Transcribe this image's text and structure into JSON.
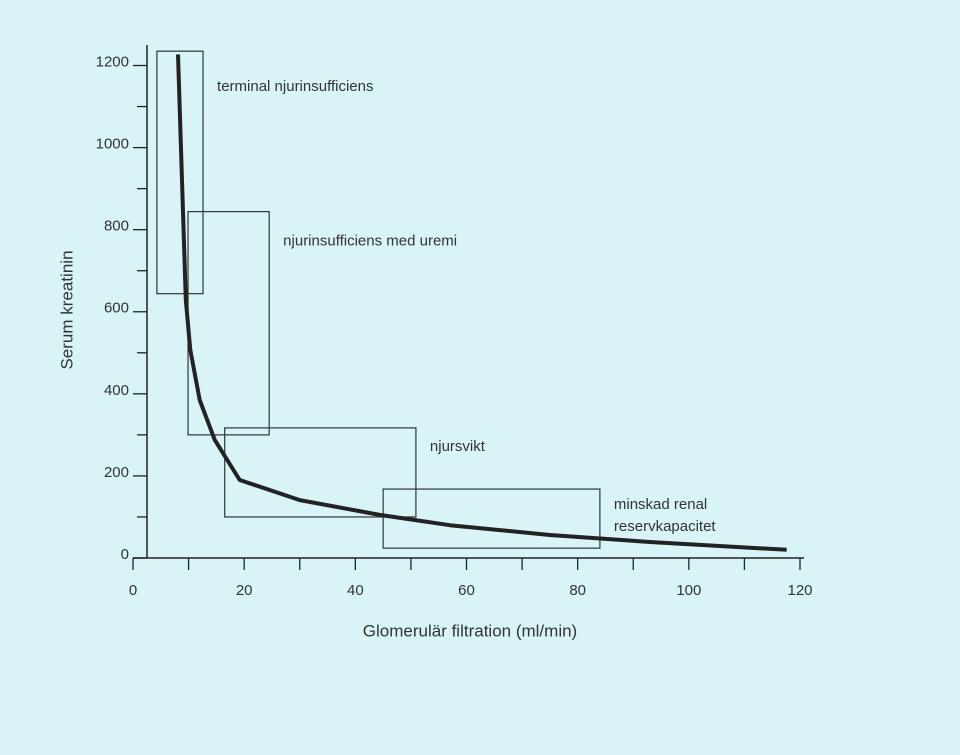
{
  "chart_data": {
    "type": "line",
    "x_label": "Glomerulär filtration (ml/min)",
    "y_label": "Serum kreatinin",
    "xlim": [
      0,
      120
    ],
    "ylim": [
      0,
      1250
    ],
    "xticks": [
      0,
      20,
      40,
      60,
      80,
      100,
      120
    ],
    "xminorticks": [
      10,
      30,
      50,
      70,
      90,
      110
    ],
    "yticks": [
      0,
      200,
      400,
      600,
      800,
      1000,
      1200
    ],
    "yminorticks": [
      100,
      300,
      500,
      700,
      900,
      1100
    ],
    "series": [
      {
        "color": "#222222",
        "x": [
          8.1,
          9.5,
          10.3,
          12,
          14.7,
          19.2,
          30,
          44.4,
          57,
          75,
          93,
          117.6
        ],
        "values": [
          1227,
          629,
          507,
          385,
          288,
          190,
          141,
          105,
          80,
          56,
          39,
          20
        ]
      }
    ],
    "regions": [
      {
        "label": [
          "terminal njurinsufficiens"
        ],
        "x": [
          4.3,
          12.6
        ],
        "y": [
          644,
          1235
        ]
      },
      {
        "label": [
          "njurinsufficiens med uremi"
        ],
        "x": [
          9.9,
          24.5
        ],
        "y": [
          300,
          844
        ]
      },
      {
        "label": [
          "njursvikt"
        ],
        "x": [
          16.5,
          50.9
        ],
        "y": [
          100,
          317
        ]
      },
      {
        "label": [
          "minskad renal",
          "reservkapacitet"
        ],
        "x": [
          45,
          84
        ],
        "y": [
          24,
          168
        ]
      }
    ]
  }
}
